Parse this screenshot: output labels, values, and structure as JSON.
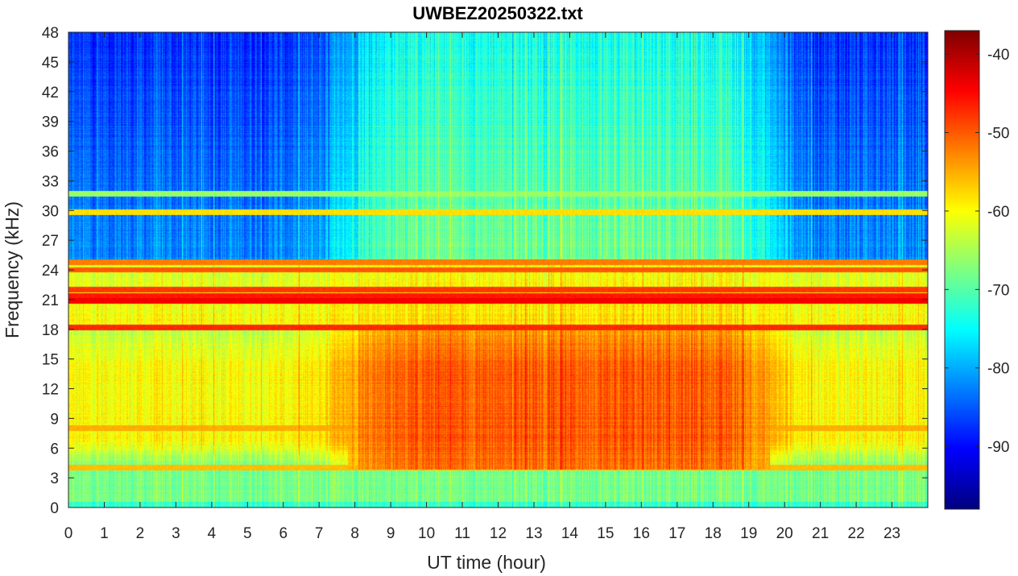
{
  "chart_data": {
    "type": "heatmap",
    "title": "UWBEZ20250322.txt",
    "xlabel": "UT time (hour)",
    "ylabel": "Frequency (kHz)",
    "xlim": [
      0,
      24
    ],
    "ylim": [
      0,
      48
    ],
    "xticks": [
      0,
      1,
      2,
      3,
      4,
      5,
      6,
      7,
      8,
      9,
      10,
      11,
      12,
      13,
      14,
      15,
      16,
      17,
      18,
      19,
      20,
      21,
      22,
      23
    ],
    "yticks": [
      0,
      3,
      6,
      9,
      12,
      15,
      18,
      21,
      24,
      27,
      30,
      33,
      36,
      39,
      42,
      45,
      48
    ],
    "colorbar": {
      "colormap": "jet",
      "range": [
        -98,
        -37
      ],
      "ticks": [
        -90,
        -80,
        -70,
        -60,
        -50,
        -40
      ],
      "tick_labels": [
        "-90",
        "-80",
        "-70",
        "-60",
        "-50",
        "-40"
      ]
    },
    "intensity_summary": {
      "low_band_0_4kHz_dB": -68,
      "main_band_4_18kHz_day_dB": -50,
      "main_band_4_18kHz_night_dB": -60,
      "upper_band_25_48kHz_day_dB": -68,
      "upper_band_25_48kHz_night_dB": -82
    },
    "transmitter_lines": [
      {
        "freq_kHz": 18.2,
        "level_dB": -47
      },
      {
        "freq_kHz": 20.9,
        "level_dB": -44
      },
      {
        "freq_kHz": 21.4,
        "level_dB": -46
      },
      {
        "freq_kHz": 22.0,
        "level_dB": -48
      },
      {
        "freq_kHz": 24.0,
        "level_dB": -50
      },
      {
        "freq_kHz": 24.8,
        "level_dB": -52
      },
      {
        "freq_kHz": 4.0,
        "level_dB": -56
      },
      {
        "freq_kHz": 8.0,
        "level_dB": -55
      },
      {
        "freq_kHz": 31.7,
        "level_dB": -66
      },
      {
        "freq_kHz": 29.8,
        "level_dB": -58
      }
    ]
  }
}
